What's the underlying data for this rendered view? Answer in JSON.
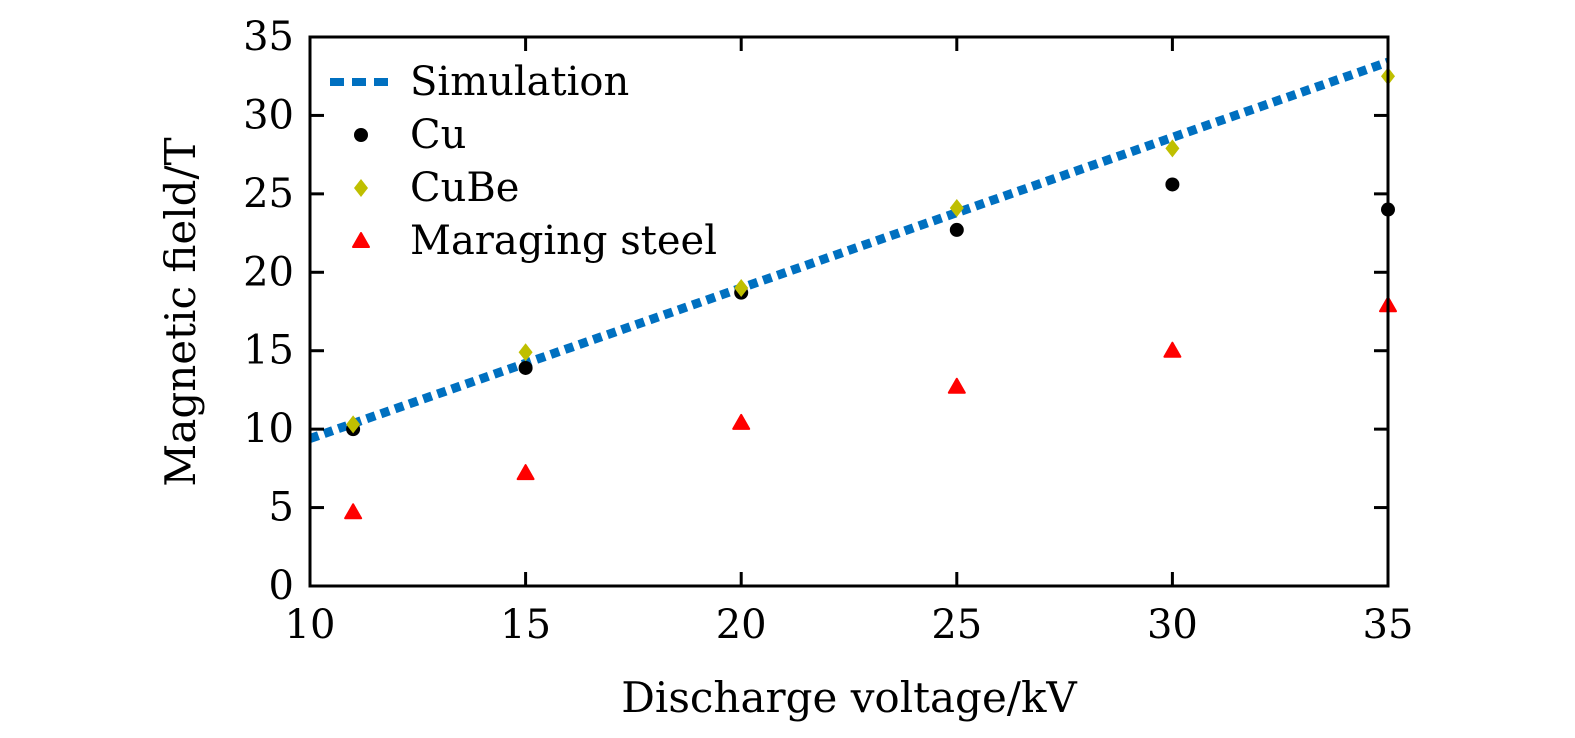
{
  "chart_data": {
    "type": "scatter",
    "title": "",
    "xlabel": "Discharge voltage/kV",
    "ylabel": "Magnetic field/T",
    "xlim": [
      10,
      35
    ],
    "ylim": [
      0,
      35
    ],
    "xticks": [
      10,
      15,
      20,
      25,
      30,
      35
    ],
    "yticks": [
      0,
      5,
      10,
      15,
      20,
      25,
      30,
      35
    ],
    "grid": false,
    "legend_position": "top-left",
    "series": [
      {
        "name": "Simulation",
        "kind": "line",
        "style": "dotted",
        "color": "#0070C0",
        "x": [
          10,
          35
        ],
        "y": [
          9.4,
          33.4
        ]
      },
      {
        "name": "Cu",
        "kind": "scatter",
        "marker": "circle",
        "color": "#000000",
        "x": [
          11,
          15,
          20,
          25,
          30,
          35
        ],
        "y": [
          10.0,
          13.9,
          18.7,
          22.7,
          25.6,
          24.0
        ]
      },
      {
        "name": "CuBe",
        "kind": "scatter",
        "marker": "diamond",
        "color": "#BFBF00",
        "x": [
          11,
          15,
          20,
          25,
          30,
          35
        ],
        "y": [
          10.3,
          14.9,
          19.0,
          24.1,
          27.9,
          32.5
        ]
      },
      {
        "name": "Maraging steel",
        "kind": "scatter",
        "marker": "triangle",
        "color": "#FF0000",
        "x": [
          11,
          15,
          20,
          25,
          30,
          35
        ],
        "y": [
          4.7,
          7.2,
          10.4,
          12.7,
          15.0,
          17.9
        ]
      }
    ]
  }
}
